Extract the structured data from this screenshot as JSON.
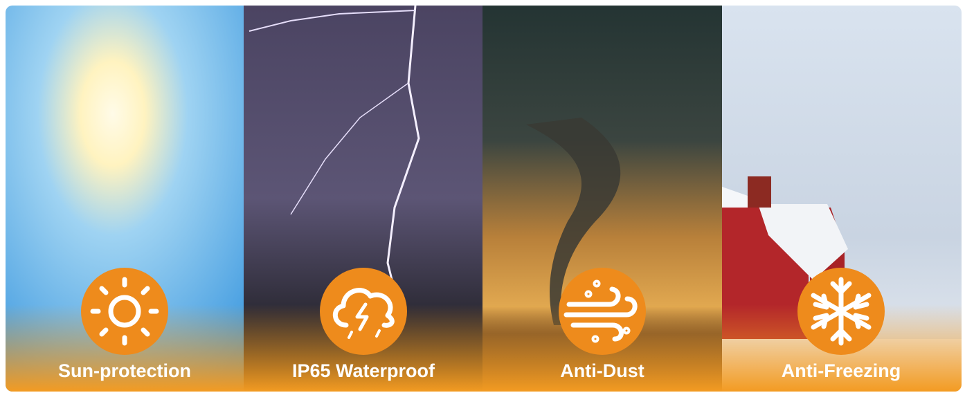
{
  "panels": [
    {
      "label": "Sun-protection"
    },
    {
      "label": "IP65 Waterproof"
    },
    {
      "label": "Anti-Dust"
    },
    {
      "label": "Anti-Freezing"
    }
  ]
}
